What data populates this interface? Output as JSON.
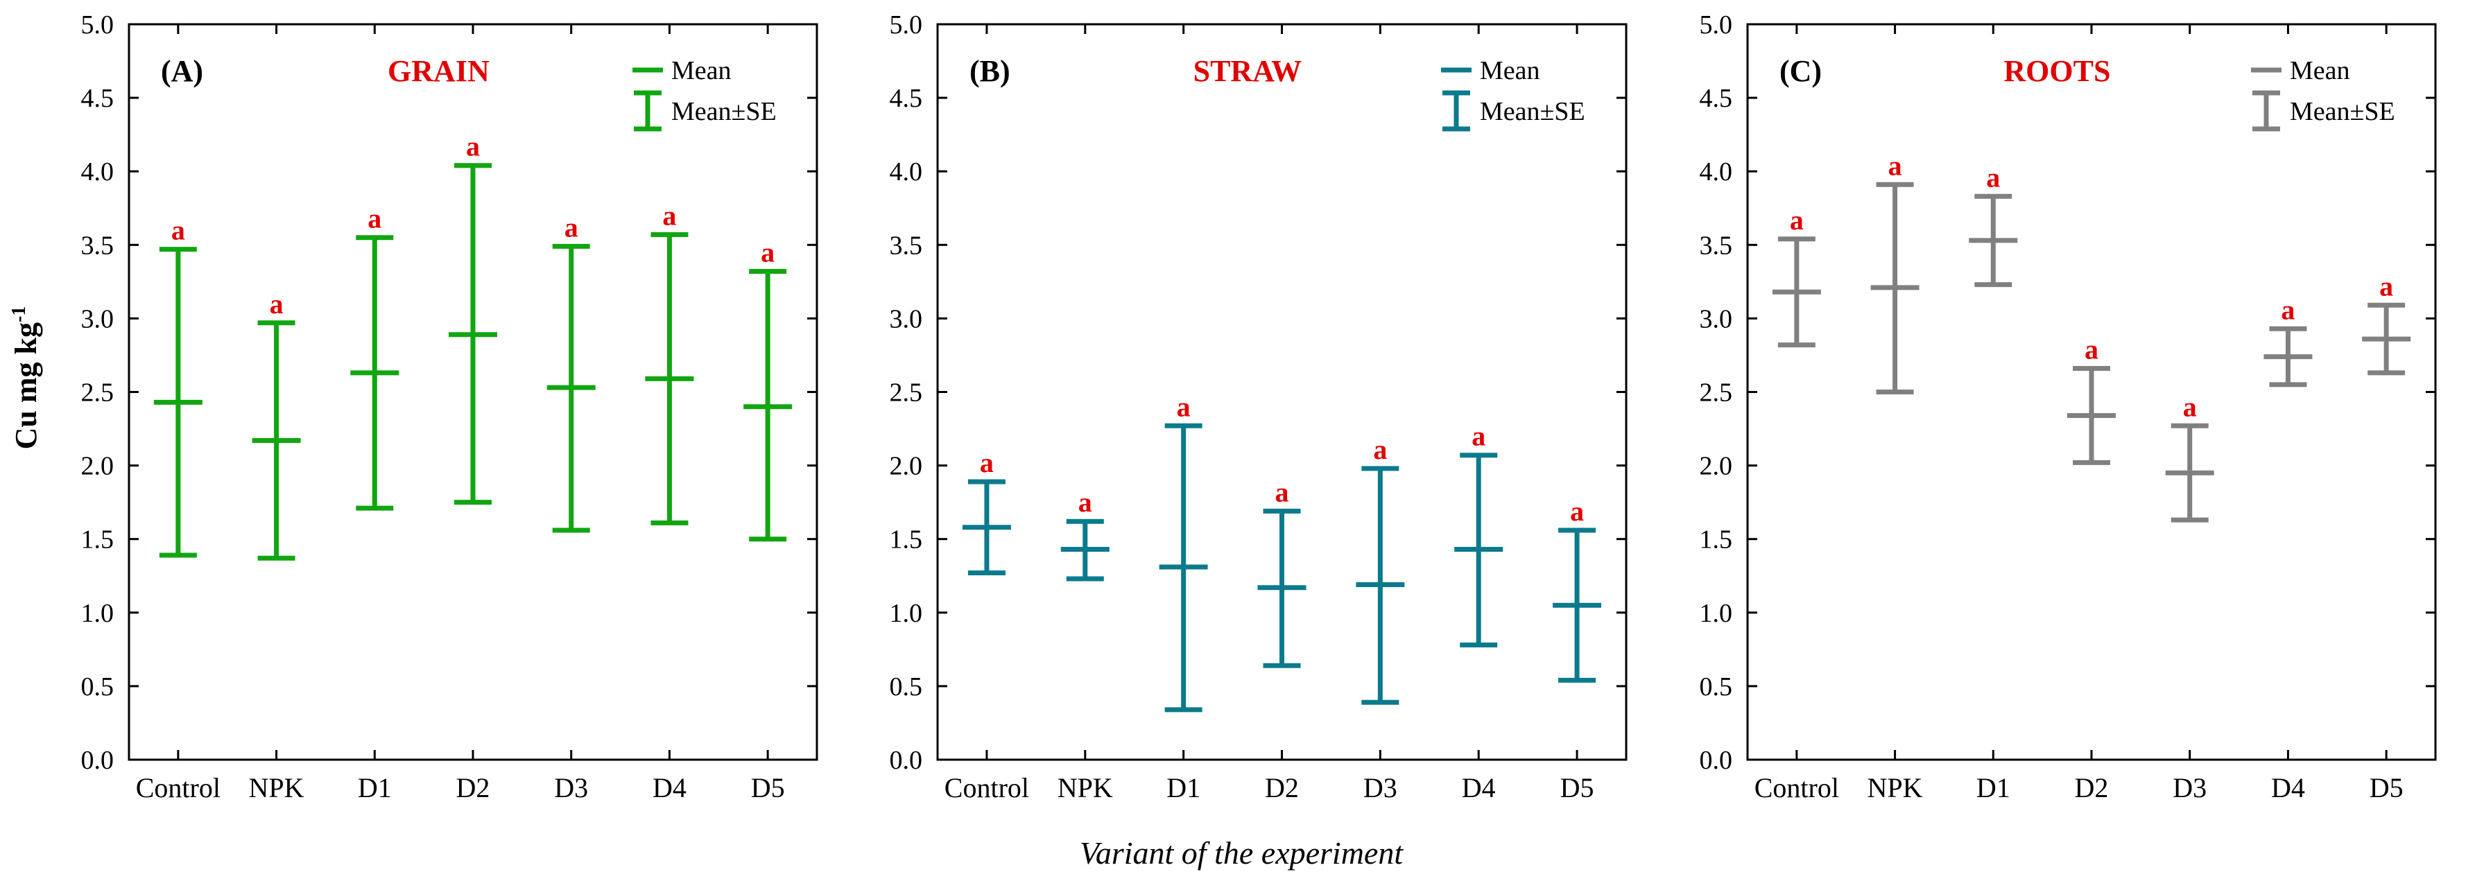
{
  "ylabel_text": "Cu mg kg",
  "ylabel_sup": "-1",
  "xlabel": "Variant of the experiment",
  "legend": {
    "mean": "Mean",
    "se": "Mean±SE"
  },
  "colors": {
    "grain": "#11a611",
    "straw": "#0b7a8c",
    "roots": "#808080",
    "sig": "#e00000"
  },
  "chart_data": [
    {
      "type": "errorbar",
      "tag": "(A)",
      "title": "GRAIN",
      "color_key": "grain",
      "ylim": [
        0,
        5
      ],
      "yticks": [
        "0.0",
        "0.5",
        "1.0",
        "1.5",
        "2.0",
        "2.5",
        "3.0",
        "3.5",
        "4.0",
        "4.5",
        "5.0"
      ],
      "categories": [
        "Control",
        "NPK",
        "D1",
        "D2",
        "D3",
        "D4",
        "D5"
      ],
      "mean": [
        2.43,
        2.17,
        2.63,
        2.89,
        2.53,
        2.59,
        2.4
      ],
      "lower": [
        1.39,
        1.37,
        1.71,
        1.75,
        1.56,
        1.61,
        1.5
      ],
      "upper": [
        3.47,
        2.97,
        3.55,
        4.04,
        3.49,
        3.57,
        3.32
      ],
      "significance": [
        "a",
        "a",
        "a",
        "a",
        "a",
        "a",
        "a"
      ]
    },
    {
      "type": "errorbar",
      "tag": "(B)",
      "title": "STRAW",
      "color_key": "straw",
      "ylim": [
        0,
        5
      ],
      "yticks": [
        "0.0",
        "0.5",
        "1.0",
        "1.5",
        "2.0",
        "2.5",
        "3.0",
        "3.5",
        "4.0",
        "4.5",
        "5.0"
      ],
      "categories": [
        "Control",
        "NPK",
        "D1",
        "D2",
        "D3",
        "D4",
        "D5"
      ],
      "mean": [
        1.58,
        1.43,
        1.31,
        1.17,
        1.19,
        1.43,
        1.05
      ],
      "lower": [
        1.27,
        1.23,
        0.34,
        0.64,
        0.39,
        0.78,
        0.54
      ],
      "upper": [
        1.89,
        1.62,
        2.27,
        1.69,
        1.98,
        2.07,
        1.56
      ],
      "significance": [
        "a",
        "a",
        "a",
        "a",
        "a",
        "a",
        "a"
      ]
    },
    {
      "type": "errorbar",
      "tag": "(C)",
      "title": "ROOTS",
      "color_key": "roots",
      "ylim": [
        0,
        5
      ],
      "yticks": [
        "0.0",
        "0.5",
        "1.0",
        "1.5",
        "2.0",
        "2.5",
        "3.0",
        "3.5",
        "4.0",
        "4.5",
        "5.0"
      ],
      "categories": [
        "Control",
        "NPK",
        "D1",
        "D2",
        "D3",
        "D4",
        "D5"
      ],
      "mean": [
        3.18,
        3.21,
        3.53,
        2.34,
        1.95,
        2.74,
        2.86
      ],
      "lower": [
        2.82,
        2.5,
        3.23,
        2.02,
        1.63,
        2.55,
        2.63
      ],
      "upper": [
        3.54,
        3.91,
        3.83,
        2.66,
        2.27,
        2.93,
        3.09
      ],
      "significance": [
        "a",
        "a",
        "a",
        "a",
        "a",
        "a",
        "a"
      ]
    }
  ]
}
